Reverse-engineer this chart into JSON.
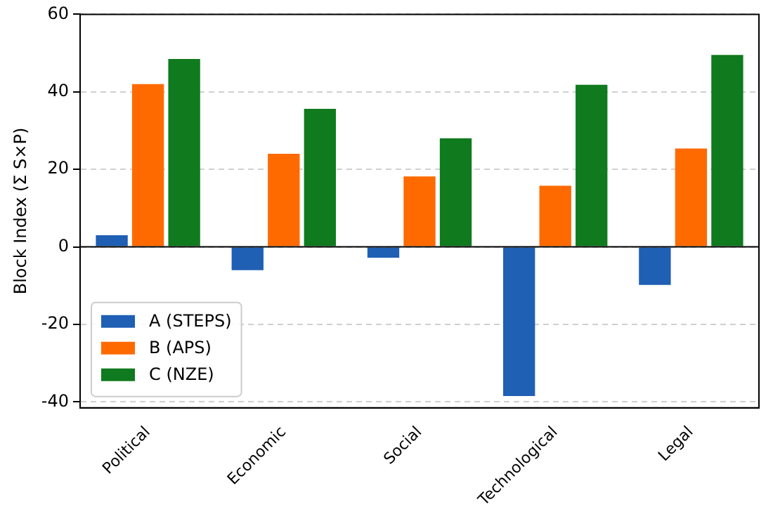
{
  "chart_data": {
    "type": "bar",
    "ylabel": "Block Index (Σ S×P)",
    "categories": [
      "Political",
      "Economic",
      "Social",
      "Technological",
      "Legal"
    ],
    "series": [
      {
        "name": "A (STEPS)",
        "color": "#1f5fb4",
        "values": [
          3,
          -6,
          -2.8,
          -38.5,
          -9.8
        ]
      },
      {
        "name": "B (APS)",
        "color": "#ff6a00",
        "values": [
          42,
          24,
          18.2,
          15.8,
          25.4
        ]
      },
      {
        "name": "C (NZE)",
        "color": "#0f7a1e",
        "values": [
          48.5,
          35.6,
          28,
          41.8,
          49.5
        ]
      }
    ],
    "ylim": [
      -41.5,
      60
    ],
    "yticks": [
      -40,
      -20,
      0,
      20,
      40,
      60
    ],
    "grid": "y",
    "legend": "bottom left"
  }
}
